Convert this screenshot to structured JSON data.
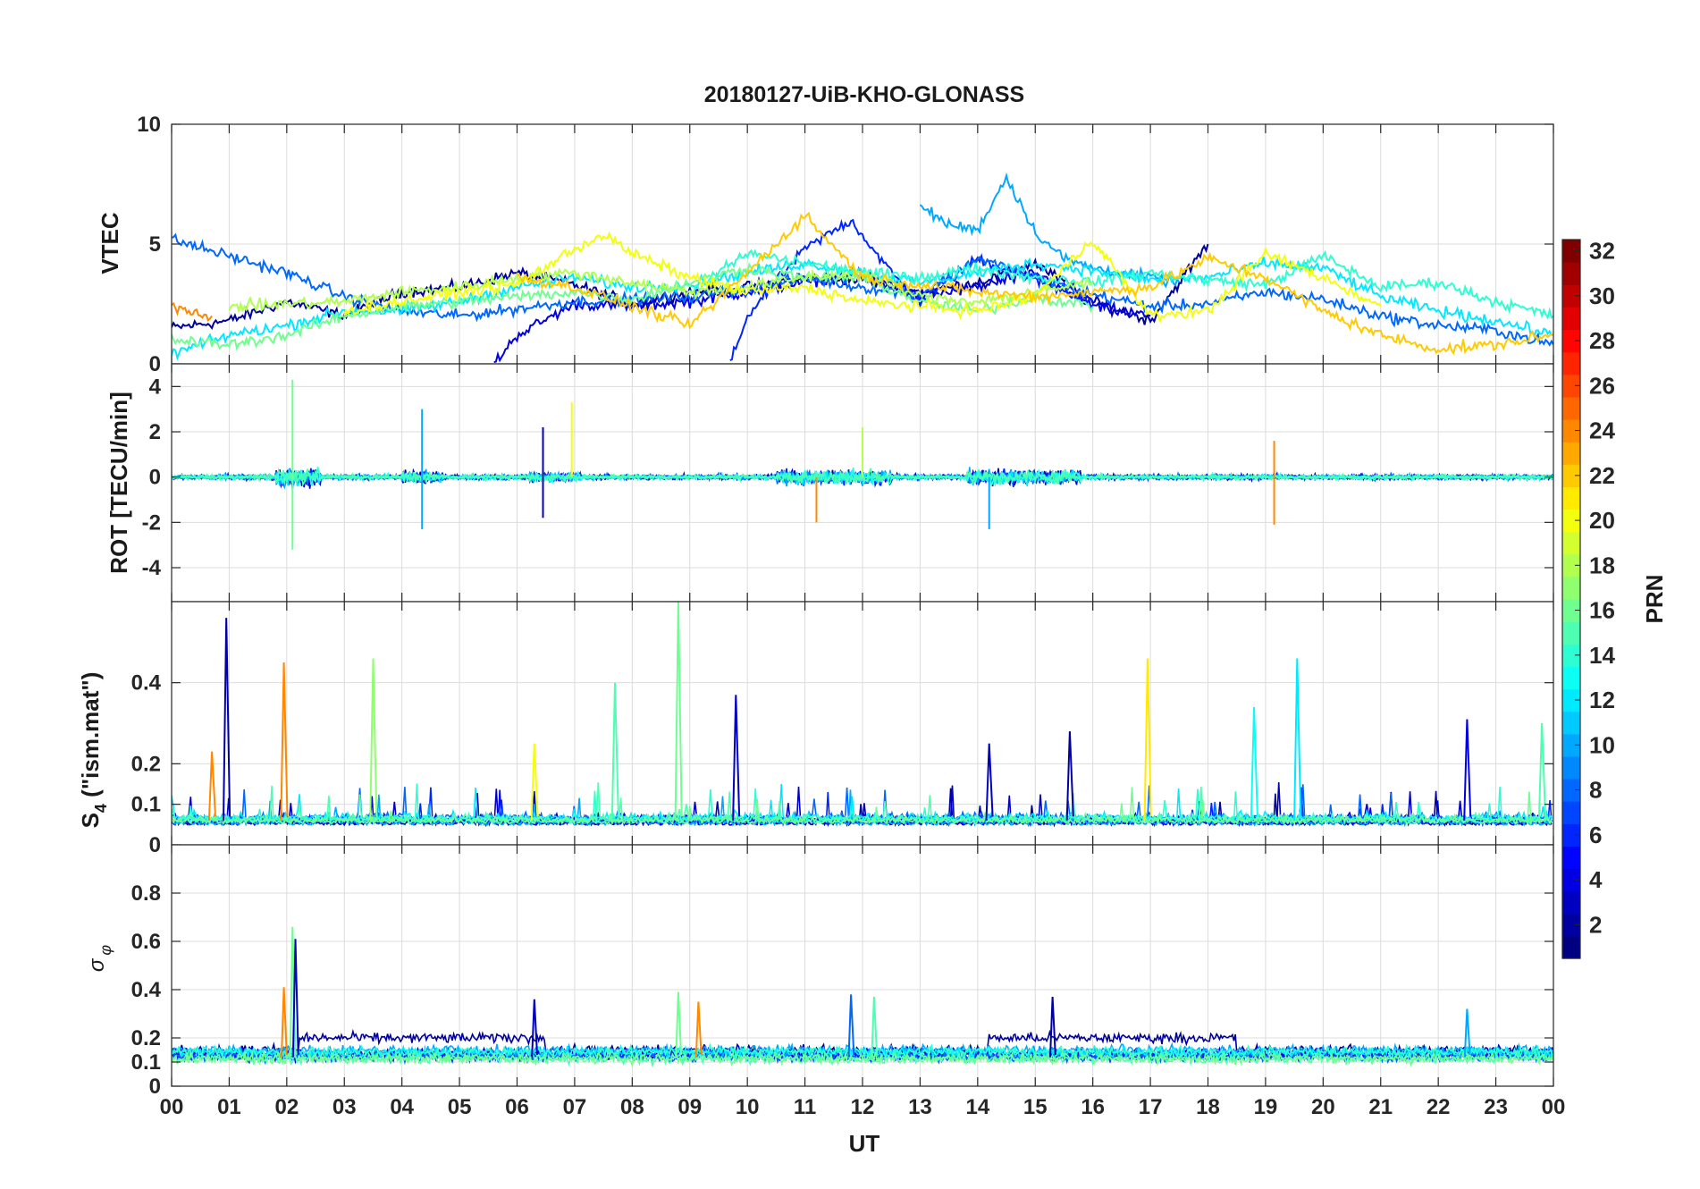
{
  "title": "20180127-UiB-KHO-GLONASS",
  "colorbar": {
    "label": "PRN",
    "range": [
      1,
      32
    ],
    "ticks": [
      "2",
      "4",
      "6",
      "8",
      "10",
      "12",
      "14",
      "16",
      "18",
      "20",
      "22",
      "24",
      "26",
      "28",
      "30",
      "32"
    ],
    "colormap": "jet"
  },
  "chart_data": [
    {
      "type": "line",
      "name": "vtec",
      "ylabel": "VTEC",
      "ylim": [
        0,
        10
      ],
      "yticks": [
        "0",
        "5",
        "10"
      ],
      "xlim": [
        0,
        24
      ],
      "grid": true,
      "series": [
        {
          "prn": 2,
          "t": [
            0,
            1,
            2,
            3,
            4,
            5,
            6,
            7,
            8,
            9,
            10,
            11,
            12,
            13,
            14,
            15,
            16,
            17,
            18
          ],
          "values": [
            1.5,
            1.8,
            2.6,
            2.0,
            3.0,
            3.2,
            3.8,
            3.3,
            2.5,
            3.0,
            3.2,
            3.6,
            3.5,
            3.0,
            3.4,
            4.2,
            2.6,
            1.8,
            5.0
          ]
        },
        {
          "prn": 4,
          "t": [
            5.6,
            6,
            7,
            8,
            9,
            10,
            11,
            12,
            13,
            14,
            15,
            16,
            17
          ],
          "values": [
            0.0,
            1.2,
            2.5,
            2.4,
            2.6,
            3.0,
            3.4,
            3.8,
            2.8,
            3.2,
            3.8,
            2.4,
            2.0
          ]
        },
        {
          "prn": 6,
          "t": [
            9.7,
            10,
            11,
            11.8,
            12.5,
            13,
            14,
            15,
            16
          ],
          "values": [
            0.0,
            2.0,
            4.8,
            6.0,
            3.8,
            2.6,
            4.4,
            3.5,
            2.6
          ]
        },
        {
          "prn": 8,
          "t": [
            0,
            1,
            2,
            3,
            4,
            5,
            6,
            7,
            8,
            9,
            10,
            11,
            12,
            13,
            14,
            15,
            16,
            17,
            18,
            19,
            20,
            21,
            22,
            23,
            24
          ],
          "values": [
            5.2,
            4.5,
            3.8,
            2.8,
            2.2,
            2.0,
            2.3,
            2.6,
            2.7,
            2.8,
            3.1,
            3.6,
            3.2,
            2.9,
            4.4,
            3.6,
            2.9,
            2.4,
            2.5,
            3.0,
            2.7,
            2.0,
            1.6,
            1.4,
            0.8
          ]
        },
        {
          "prn": 10,
          "t": [
            13,
            13.5,
            14,
            14.5,
            15,
            15.5,
            16,
            17,
            17.5
          ],
          "values": [
            6.6,
            5.8,
            5.6,
            7.8,
            5.5,
            4.4,
            4.0,
            3.6,
            3.4
          ]
        },
        {
          "prn": 12,
          "t": [
            0,
            1,
            2,
            3,
            4,
            5,
            6,
            7,
            8,
            9,
            10,
            11,
            12,
            13,
            14,
            15,
            16,
            17,
            18,
            19,
            20,
            21,
            22,
            23,
            24
          ],
          "values": [
            0.4,
            1.2,
            1.6,
            2.2,
            2.2,
            2.6,
            3.2,
            3.6,
            3.2,
            3.3,
            3.8,
            4.2,
            3.8,
            3.4,
            3.8,
            4.2,
            3.9,
            3.5,
            3.6,
            4.2,
            4.0,
            2.8,
            2.2,
            1.8,
            1.2
          ]
        },
        {
          "prn": 14,
          "t": [
            9,
            10,
            11,
            12,
            13,
            14,
            15,
            16,
            17,
            18,
            19,
            20,
            21,
            22,
            23,
            24
          ],
          "values": [
            3.0,
            4.6,
            4.2,
            3.8,
            3.6,
            4.0,
            3.6,
            3.4,
            3.8,
            3.5,
            3.3,
            4.5,
            3.2,
            3.4,
            2.6,
            2.0
          ]
        },
        {
          "prn": 16,
          "t": [
            0,
            1,
            2,
            3,
            4,
            5,
            6,
            7,
            8,
            9,
            10,
            11,
            12,
            13,
            14,
            15,
            16
          ],
          "values": [
            1.0,
            0.8,
            1.2,
            2.0,
            2.4,
            2.6,
            2.8,
            3.0,
            2.7,
            3.4,
            4.0,
            3.6,
            3.6,
            2.6,
            2.2,
            2.8,
            2.4
          ]
        },
        {
          "prn": 18,
          "t": [
            1,
            2,
            3,
            4,
            5,
            6,
            7,
            8,
            9,
            10,
            11,
            12,
            13,
            14,
            15,
            16
          ],
          "values": [
            2.4,
            2.5,
            2.6,
            3.0,
            3.2,
            3.6,
            3.8,
            3.4,
            3.0,
            3.2,
            3.6,
            3.8,
            2.8,
            2.6,
            3.0,
            3.4
          ]
        },
        {
          "prn": 20,
          "t": [
            3,
            4,
            5,
            6,
            7,
            7.5,
            8,
            9,
            10,
            11,
            12,
            13,
            14,
            15,
            16,
            17,
            18,
            19,
            20,
            21
          ],
          "values": [
            2.2,
            2.6,
            3.0,
            3.3,
            4.8,
            5.4,
            4.6,
            3.6,
            3.0,
            3.2,
            2.6,
            2.4,
            2.2,
            2.8,
            5.2,
            2.0,
            2.2,
            4.6,
            3.6,
            2.4
          ]
        },
        {
          "prn": 22,
          "t": [
            6,
            7,
            8,
            9,
            10,
            11,
            12,
            13,
            14,
            15,
            16,
            17,
            18,
            19,
            20,
            21,
            22,
            23,
            24
          ],
          "values": [
            3.6,
            3.2,
            2.4,
            1.6,
            3.8,
            6.2,
            3.6,
            3.3,
            3.0,
            2.8,
            3.0,
            3.2,
            4.4,
            3.6,
            2.2,
            1.2,
            0.6,
            0.8,
            1.2
          ]
        },
        {
          "prn": 24,
          "t": [
            0,
            0.7
          ],
          "values": [
            2.4,
            2.0
          ]
        }
      ]
    },
    {
      "type": "line",
      "name": "rot",
      "ylabel": "ROT [TECU/min]",
      "ylim": [
        -5.5,
        5
      ],
      "yticks": [
        "-4",
        "-2",
        "0",
        "2",
        "4"
      ],
      "xlim": [
        0,
        24
      ],
      "grid": true,
      "peaks": [
        {
          "t": 2.1,
          "value": 4.3
        },
        {
          "t": 2.1,
          "value": -3.2
        },
        {
          "t": 4.35,
          "value": 3.0
        },
        {
          "t": 4.35,
          "value": -2.3
        },
        {
          "t": 6.45,
          "value": 2.2
        },
        {
          "t": 6.45,
          "value": -1.8
        },
        {
          "t": 6.95,
          "value": 3.3
        },
        {
          "t": 12.0,
          "value": 2.2
        },
        {
          "t": 11.2,
          "value": -2.0
        },
        {
          "t": 14.2,
          "value": -2.3
        },
        {
          "t": 19.15,
          "value": -2.1
        },
        {
          "t": 19.15,
          "value": 1.6
        }
      ]
    },
    {
      "type": "line",
      "name": "s4",
      "ylabel": "S4 (\"ism.mat\")",
      "ylabel_main": "S",
      "ylabel_sub": "4",
      "ylabel_rest": " (\"ism.mat\")",
      "ylim": [
        0,
        0.6
      ],
      "yticks": [
        "0",
        "0.1",
        "0.2",
        "0.4"
      ],
      "xlim": [
        0,
        24
      ],
      "grid": true,
      "peaks": [
        {
          "t": 0.95,
          "value": 0.56,
          "prn": 2
        },
        {
          "t": 0.7,
          "value": 0.23,
          "prn": 24
        },
        {
          "t": 1.95,
          "value": 0.45,
          "prn": 24
        },
        {
          "t": 3.5,
          "value": 0.46,
          "prn": 17
        },
        {
          "t": 6.3,
          "value": 0.25,
          "prn": 20
        },
        {
          "t": 7.7,
          "value": 0.4,
          "prn": 15
        },
        {
          "t": 8.8,
          "value": 0.6,
          "prn": 16
        },
        {
          "t": 9.8,
          "value": 0.37,
          "prn": 3
        },
        {
          "t": 14.2,
          "value": 0.25,
          "prn": 3
        },
        {
          "t": 15.6,
          "value": 0.28,
          "prn": 2
        },
        {
          "t": 16.95,
          "value": 0.46,
          "prn": 21
        },
        {
          "t": 18.8,
          "value": 0.34,
          "prn": 13
        },
        {
          "t": 19.55,
          "value": 0.46,
          "prn": 12
        },
        {
          "t": 22.5,
          "value": 0.31,
          "prn": 4
        },
        {
          "t": 23.8,
          "value": 0.3,
          "prn": 15
        }
      ]
    },
    {
      "type": "line",
      "name": "sigma_phi",
      "ylabel": "σφ",
      "ylabel_main": "σ",
      "ylabel_sub": "φ",
      "ylim": [
        0,
        1
      ],
      "yticks": [
        "0",
        "0.1",
        "0.2",
        "0.4",
        "0.6",
        "0.8"
      ],
      "xlim": [
        0,
        24
      ],
      "grid": true,
      "peaks": [
        {
          "t": 1.95,
          "value": 0.41,
          "prn": 24
        },
        {
          "t": 2.1,
          "value": 0.66,
          "prn": 16
        },
        {
          "t": 2.15,
          "value": 0.61,
          "prn": 3
        },
        {
          "t": 6.3,
          "value": 0.36,
          "prn": 3
        },
        {
          "t": 8.8,
          "value": 0.39,
          "prn": 16
        },
        {
          "t": 9.15,
          "value": 0.35,
          "prn": 24
        },
        {
          "t": 11.8,
          "value": 0.38,
          "prn": 8
        },
        {
          "t": 12.2,
          "value": 0.37,
          "prn": 15
        },
        {
          "t": 15.3,
          "value": 0.37,
          "prn": 2
        },
        {
          "t": 22.5,
          "value": 0.32,
          "prn": 10
        }
      ]
    }
  ],
  "x_axis": {
    "label": "UT",
    "ticks": [
      "00",
      "01",
      "02",
      "03",
      "04",
      "05",
      "06",
      "07",
      "08",
      "09",
      "10",
      "11",
      "12",
      "13",
      "14",
      "15",
      "16",
      "17",
      "18",
      "19",
      "20",
      "21",
      "22",
      "23",
      "00"
    ]
  }
}
